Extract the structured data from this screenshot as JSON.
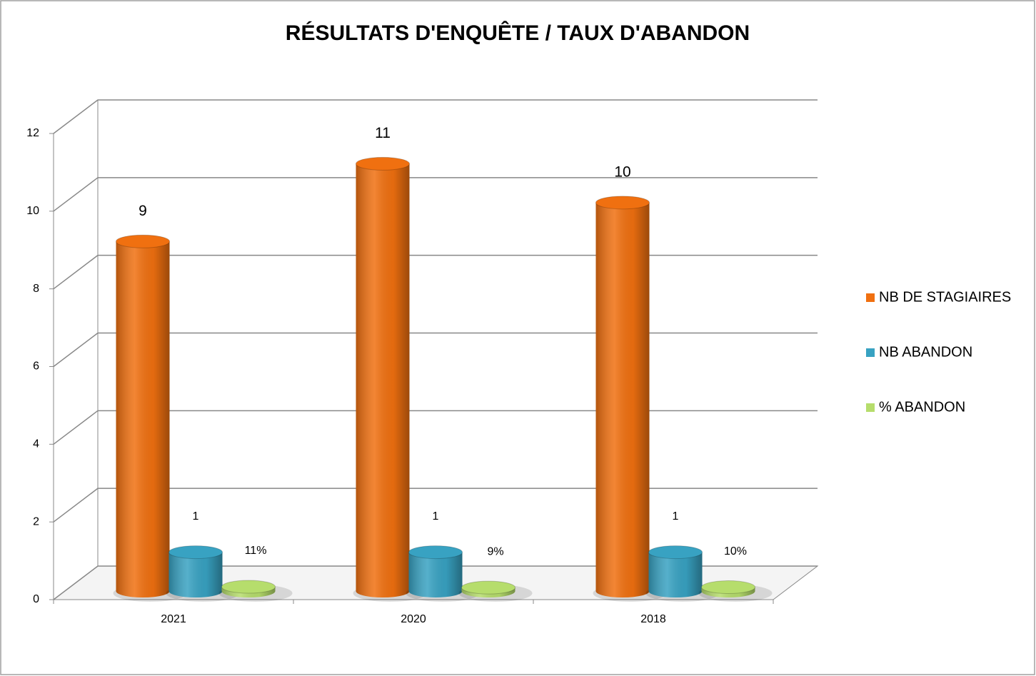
{
  "chart_data": {
    "type": "bar",
    "title": "RÉSULTATS D'ENQUÊTE / TAUX D'ABANDON",
    "categories": [
      "2021",
      "2020",
      "2018"
    ],
    "series": [
      {
        "name": "NB DE STAGIAIRES",
        "color": "#f07010",
        "values": [
          9,
          11,
          10
        ]
      },
      {
        "name": "NB ABANDON",
        "color": "#38a2c2",
        "values": [
          1,
          1,
          1
        ]
      },
      {
        "name": "% ABANDON",
        "color": "#b6dd6c",
        "values": [
          0.11,
          0.09,
          0.1
        ],
        "value_labels": [
          "11%",
          "9%",
          "10%"
        ]
      }
    ],
    "ylim": [
      0,
      12
    ],
    "yticks": [
      0,
      2,
      4,
      6,
      8,
      10,
      12
    ],
    "grid": true,
    "legend": "right"
  }
}
